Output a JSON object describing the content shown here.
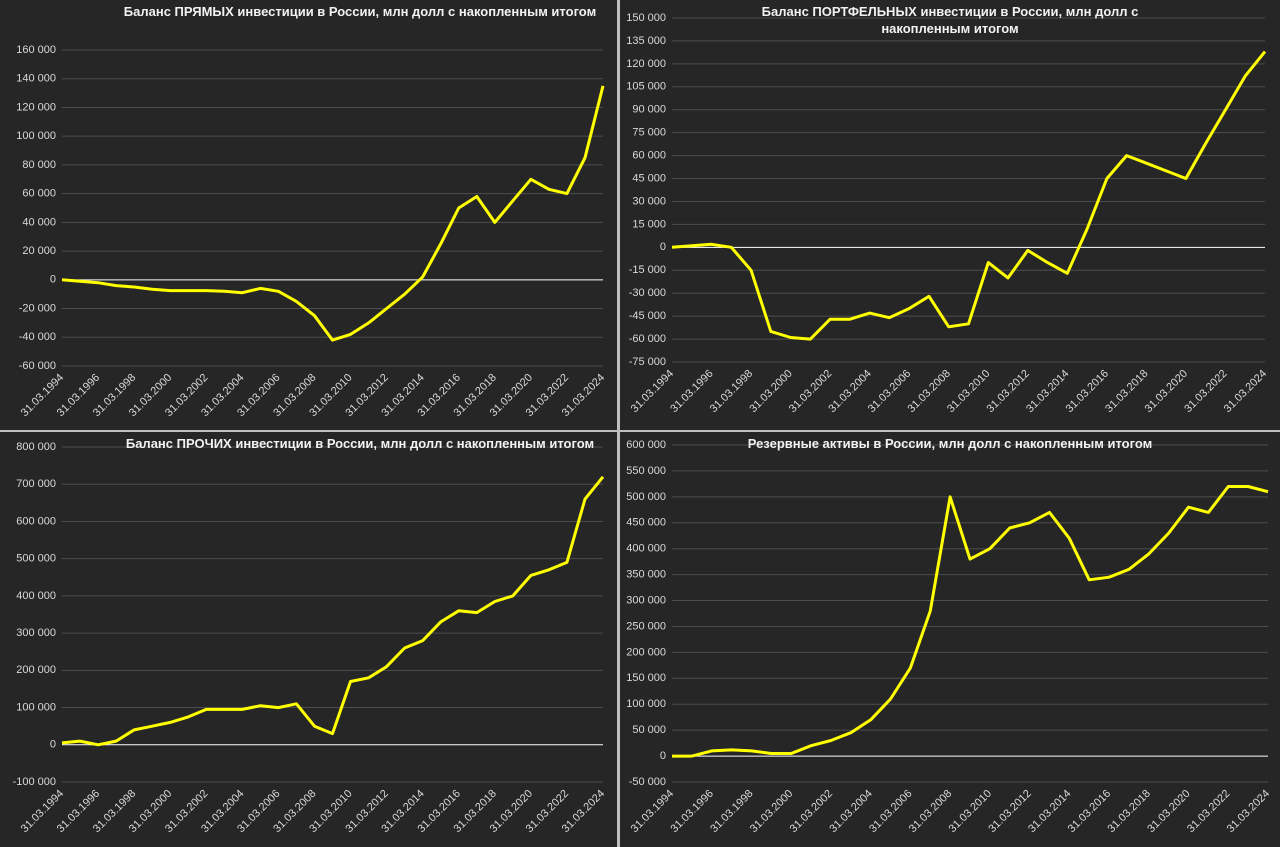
{
  "chart_data": [
    {
      "type": "line",
      "title": "Баланс ПРЯМЫХ инвестиции в России, млн долл с накопленным итогом",
      "categories": [
        "31.03.1994",
        null,
        "31.03.1996",
        null,
        "31.03.1998",
        null,
        "31.03.2000",
        null,
        "31.03.2002",
        null,
        "31.03.2004",
        null,
        "31.03.2006",
        null,
        "31.03.2008",
        null,
        "31.03.2010",
        null,
        "31.03.2012",
        null,
        "31.03.2014",
        null,
        "31.03.2016",
        null,
        "31.03.2018",
        null,
        "31.03.2020",
        null,
        "31.03.2022",
        null,
        "31.03.2024"
      ],
      "values": [
        0,
        -1000,
        -2000,
        -4000,
        -5000,
        -6500,
        -7500,
        -7500,
        -7500,
        -8000,
        -9000,
        -6000,
        -8000,
        -15000,
        -25000,
        -42000,
        -38000,
        -30000,
        -20000,
        -10000,
        2000,
        25000,
        50000,
        58000,
        40000,
        55000,
        70000,
        63000,
        60000,
        85000,
        135000
      ],
      "color": "#ffff00",
      "ylim": [
        -60000,
        160000
      ],
      "yticks": [
        {
          "value": -60000,
          "label": "-60 000"
        },
        {
          "value": -40000,
          "label": "-40 000"
        },
        {
          "value": -20000,
          "label": "-20 000"
        },
        0,
        {
          "value": 20000,
          "label": "20 000"
        },
        {
          "value": 40000,
          "label": "40 000"
        },
        {
          "value": 60000,
          "label": "60 000"
        },
        {
          "value": 80000,
          "label": "80 000"
        },
        {
          "value": 100000,
          "label": "100 000"
        },
        {
          "value": 120000,
          "label": "120 000"
        },
        {
          "value": 140000,
          "label": "140 000"
        },
        {
          "value": 160000,
          "label": "160 000"
        }
      ],
      "grid": true
    },
    {
      "type": "line",
      "title": "Баланс ПОРТФЕЛЬНЫХ инвестиции в России, млн долл с накопленным итогом",
      "categories": [
        "31.03.1994",
        null,
        "31.03.1996",
        null,
        "31.03.1998",
        null,
        "31.03.2000",
        null,
        "31.03.2002",
        null,
        "31.03.2004",
        null,
        "31.03.2006",
        null,
        "31.03.2008",
        null,
        "31.03.2010",
        null,
        "31.03.2012",
        null,
        "31.03.2014",
        null,
        "31.03.2016",
        null,
        "31.03.2018",
        null,
        "31.03.2020",
        null,
        "31.03.2022",
        null,
        "31.03.2024"
      ],
      "values": [
        0,
        1000,
        2000,
        0,
        -15000,
        -55000,
        -59000,
        -60000,
        -47000,
        -47000,
        -43000,
        -46000,
        -40000,
        -32000,
        -52000,
        -50000,
        -10000,
        -20000,
        -2000,
        -10000,
        -17000,
        12000,
        45000,
        60000,
        55000,
        50000,
        45000,
        68000,
        90000,
        112000,
        128000
      ],
      "color": "#ffff00",
      "ylim": [
        -75000,
        150000
      ],
      "yticks": [
        {
          "value": -75000,
          "label": "-75 000"
        },
        {
          "value": -60000,
          "label": "-60 000"
        },
        {
          "value": -45000,
          "label": "-45 000"
        },
        {
          "value": -30000,
          "label": "-30 000"
        },
        {
          "value": -15000,
          "label": "-15 000"
        },
        0,
        {
          "value": 15000,
          "label": "15 000"
        },
        {
          "value": 30000,
          "label": "30 000"
        },
        {
          "value": 45000,
          "label": "45 000"
        },
        {
          "value": 60000,
          "label": "60 000"
        },
        {
          "value": 75000,
          "label": "75 000"
        },
        {
          "value": 90000,
          "label": "90 000"
        },
        {
          "value": 105000,
          "label": "105 000"
        },
        {
          "value": 120000,
          "label": "120 000"
        },
        {
          "value": 135000,
          "label": "135 000"
        },
        {
          "value": 150000,
          "label": "150 000"
        }
      ],
      "grid": true
    },
    {
      "type": "line",
      "title": "Баланс ПРОЧИХ инвестиции в России, млн долл с накопленным итогом",
      "categories": [
        "31.03.1994",
        null,
        "31.03.1996",
        null,
        "31.03.1998",
        null,
        "31.03.2000",
        null,
        "31.03.2002",
        null,
        "31.03.2004",
        null,
        "31.03.2006",
        null,
        "31.03.2008",
        null,
        "31.03.2010",
        null,
        "31.03.2012",
        null,
        "31.03.2014",
        null,
        "31.03.2016",
        null,
        "31.03.2018",
        null,
        "31.03.2020",
        null,
        "31.03.2022",
        null,
        "31.03.2024"
      ],
      "values": [
        5000,
        10000,
        0,
        10000,
        40000,
        50000,
        60000,
        75000,
        95000,
        95000,
        95000,
        105000,
        100000,
        110000,
        50000,
        30000,
        170000,
        180000,
        210000,
        260000,
        280000,
        330000,
        360000,
        355000,
        385000,
        400000,
        455000,
        470000,
        490000,
        660000,
        720000
      ],
      "color": "#ffff00",
      "ylim": [
        -100000,
        800000
      ],
      "yticks": [
        {
          "value": -100000,
          "label": "-100 000"
        },
        0,
        {
          "value": 100000,
          "label": "100 000"
        },
        {
          "value": 200000,
          "label": "200 000"
        },
        {
          "value": 300000,
          "label": "300 000"
        },
        {
          "value": 400000,
          "label": "400 000"
        },
        {
          "value": 500000,
          "label": "500 000"
        },
        {
          "value": 600000,
          "label": "600 000"
        },
        {
          "value": 700000,
          "label": "700 000"
        },
        {
          "value": 800000,
          "label": "800 000"
        }
      ],
      "grid": true
    },
    {
      "type": "line",
      "title": "Резервные активы в России, млн долл с накопленным итогом",
      "categories": [
        "31.03.1994",
        null,
        "31.03.1996",
        null,
        "31.03.1998",
        null,
        "31.03.2000",
        null,
        "31.03.2002",
        null,
        "31.03.2004",
        null,
        "31.03.2006",
        null,
        "31.03.2008",
        null,
        "31.03.2010",
        null,
        "31.03.2012",
        null,
        "31.03.2014",
        null,
        "31.03.2016",
        null,
        "31.03.2018",
        null,
        "31.03.2020",
        null,
        "31.03.2022",
        null,
        "31.03.2024"
      ],
      "values": [
        0,
        0,
        10000,
        12000,
        10000,
        5000,
        5000,
        20000,
        30000,
        45000,
        70000,
        110000,
        170000,
        280000,
        500000,
        380000,
        400000,
        440000,
        450000,
        470000,
        420000,
        340000,
        345000,
        360000,
        390000,
        430000,
        480000,
        470000,
        520000,
        520000,
        510000
      ],
      "color": "#ffff00",
      "ylim": [
        -50000,
        600000
      ],
      "yticks": [
        {
          "value": -50000,
          "label": "-50 000"
        },
        0,
        {
          "value": 50000,
          "label": "50 000"
        },
        {
          "value": 100000,
          "label": "100 000"
        },
        {
          "value": 150000,
          "label": "150 000"
        },
        {
          "value": 200000,
          "label": "200 000"
        },
        {
          "value": 250000,
          "label": "250 000"
        },
        {
          "value": 300000,
          "label": "300 000"
        },
        {
          "value": 350000,
          "label": "350 000"
        },
        {
          "value": 400000,
          "label": "400 000"
        },
        {
          "value": 450000,
          "label": "450 000"
        },
        {
          "value": 500000,
          "label": "500 000"
        },
        {
          "value": 550000,
          "label": "550 000"
        },
        {
          "value": 600000,
          "label": "600 000"
        }
      ],
      "grid": true
    }
  ]
}
